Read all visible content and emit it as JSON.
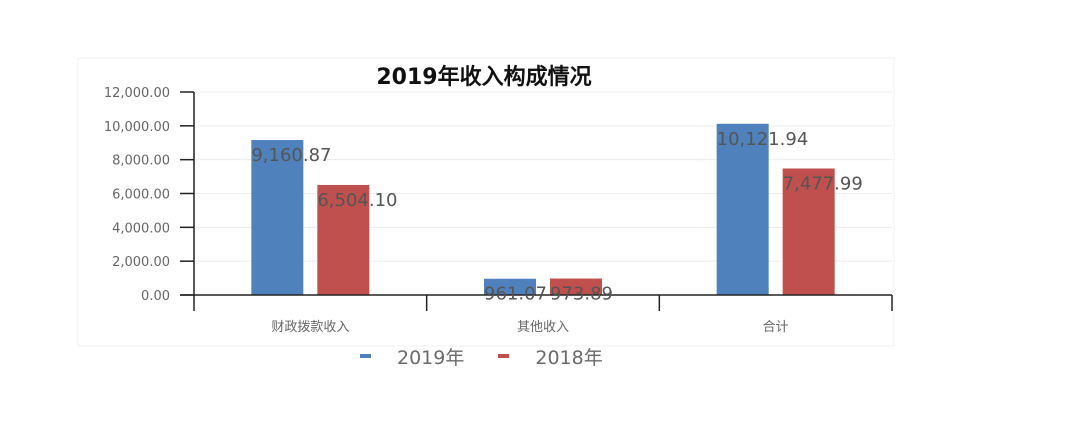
{
  "chart_data": {
    "type": "bar",
    "title": "2019年收入构成情况",
    "categories": [
      "财政拨款收入",
      "其他收入",
      "合计"
    ],
    "series": [
      {
        "name": "2019年",
        "color": "#4f81bd",
        "values": [
          9160.87,
          961.07,
          10121.94
        ],
        "labels": [
          "9,160.87",
          "961.07",
          "10,121.94"
        ]
      },
      {
        "name": "2018年",
        "color": "#c0504d",
        "values": [
          6504.1,
          973.89,
          7477.99
        ],
        "labels": [
          "6,504.10",
          "973.89",
          "7,477.99"
        ]
      }
    ],
    "y_ticks": [
      {
        "value": 0,
        "label": "0.00"
      },
      {
        "value": 2000,
        "label": "2,000.00"
      },
      {
        "value": 4000,
        "label": "4,000.00"
      },
      {
        "value": 6000,
        "label": "6,000.00"
      },
      {
        "value": 8000,
        "label": "8,000.00"
      },
      {
        "value": 10000,
        "label": "10,000.00"
      },
      {
        "value": 12000,
        "label": "12,000.00"
      }
    ],
    "ylim": [
      0,
      12000
    ],
    "grid": true,
    "legend_position": "bottom"
  }
}
